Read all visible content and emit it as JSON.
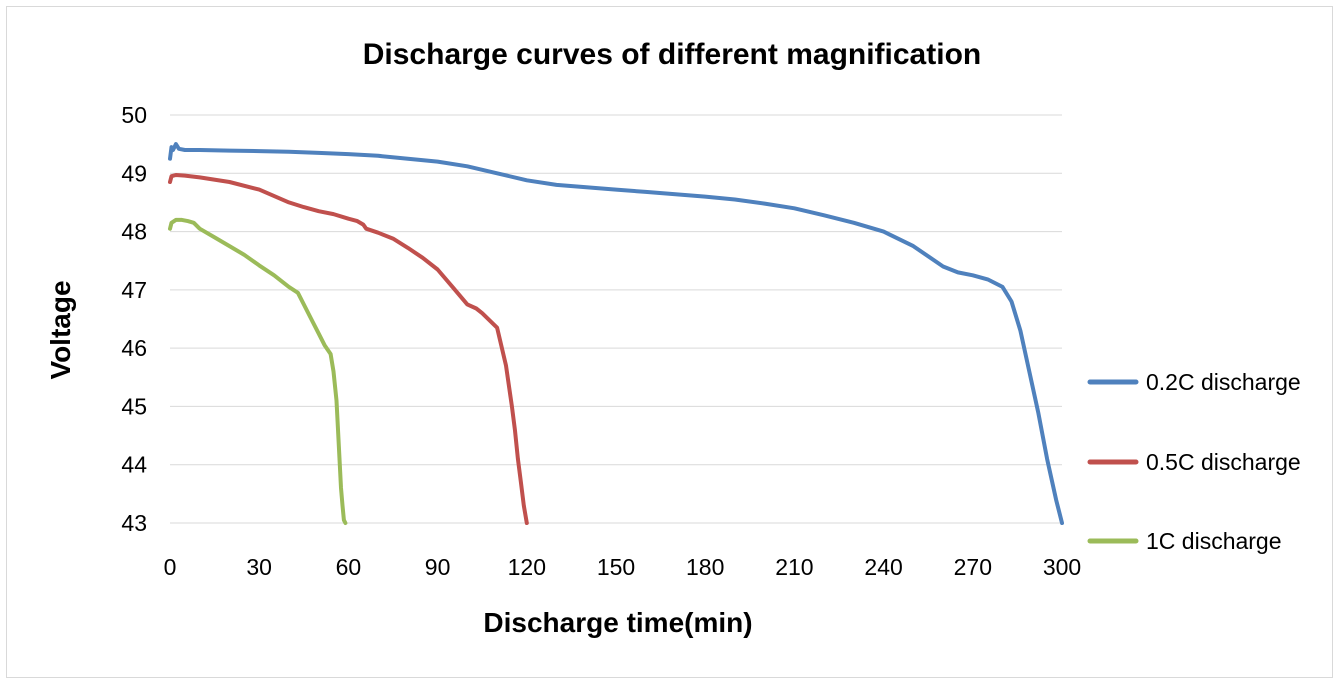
{
  "chart_data": {
    "type": "line",
    "title": "Discharge curves of different magnification",
    "xlabel": "Discharge time(min)",
    "ylabel": "Voltage",
    "xlim": [
      0,
      300
    ],
    "ylim": [
      43,
      50
    ],
    "x_ticks": [
      "0",
      "30",
      "60",
      "90",
      "120",
      "150",
      "180",
      "210",
      "240",
      "270",
      "300"
    ],
    "y_ticks": [
      "43",
      "44",
      "45",
      "46",
      "47",
      "48",
      "49",
      "50"
    ],
    "grid": "horizontal",
    "legend_position": "right",
    "series": [
      {
        "name": "0.2C discharge",
        "color": "#4f81bd",
        "x": [
          0,
          0.5,
          1,
          2,
          3,
          5,
          10,
          20,
          30,
          40,
          50,
          60,
          70,
          80,
          90,
          100,
          110,
          120,
          130,
          140,
          150,
          160,
          170,
          180,
          190,
          200,
          210,
          220,
          230,
          240,
          250,
          260,
          265,
          270,
          275,
          280,
          283,
          286,
          289,
          292,
          295,
          298,
          300
        ],
        "y": [
          49.25,
          49.45,
          49.4,
          49.5,
          49.42,
          49.4,
          49.4,
          49.39,
          49.38,
          49.37,
          49.35,
          49.33,
          49.3,
          49.25,
          49.2,
          49.12,
          49.0,
          48.88,
          48.8,
          48.76,
          48.72,
          48.68,
          48.64,
          48.6,
          48.55,
          48.48,
          48.4,
          48.28,
          48.15,
          48.0,
          47.75,
          47.4,
          47.3,
          47.25,
          47.18,
          47.05,
          46.8,
          46.3,
          45.6,
          44.9,
          44.1,
          43.4,
          43.0
        ]
      },
      {
        "name": "0.5C discharge",
        "color": "#c0504d",
        "x": [
          0,
          0.5,
          2,
          5,
          10,
          20,
          30,
          40,
          45,
          50,
          55,
          60,
          63,
          65,
          66,
          70,
          75,
          80,
          85,
          90,
          95,
          100,
          103,
          105,
          110,
          113,
          115,
          116,
          117,
          118,
          119,
          120
        ],
        "y": [
          48.85,
          48.95,
          48.97,
          48.96,
          48.93,
          48.85,
          48.72,
          48.5,
          48.42,
          48.35,
          48.3,
          48.22,
          48.18,
          48.12,
          48.05,
          47.98,
          47.88,
          47.72,
          47.55,
          47.35,
          47.05,
          46.75,
          46.68,
          46.6,
          46.35,
          45.7,
          45.0,
          44.6,
          44.1,
          43.7,
          43.3,
          43.0
        ]
      },
      {
        "name": "1C discharge",
        "color": "#9bbb59",
        "x": [
          0,
          0.5,
          2,
          4,
          6,
          8,
          10,
          15,
          20,
          25,
          30,
          35,
          40,
          43,
          45,
          48,
          50,
          52,
          54,
          55,
          56,
          56.5,
          57,
          57.5,
          58,
          58.5,
          59
        ],
        "y": [
          48.05,
          48.15,
          48.2,
          48.2,
          48.18,
          48.15,
          48.05,
          47.9,
          47.75,
          47.6,
          47.42,
          47.25,
          47.05,
          46.95,
          46.75,
          46.45,
          46.25,
          46.05,
          45.9,
          45.6,
          45.1,
          44.6,
          44.1,
          43.6,
          43.3,
          43.05,
          43.0
        ]
      }
    ]
  }
}
